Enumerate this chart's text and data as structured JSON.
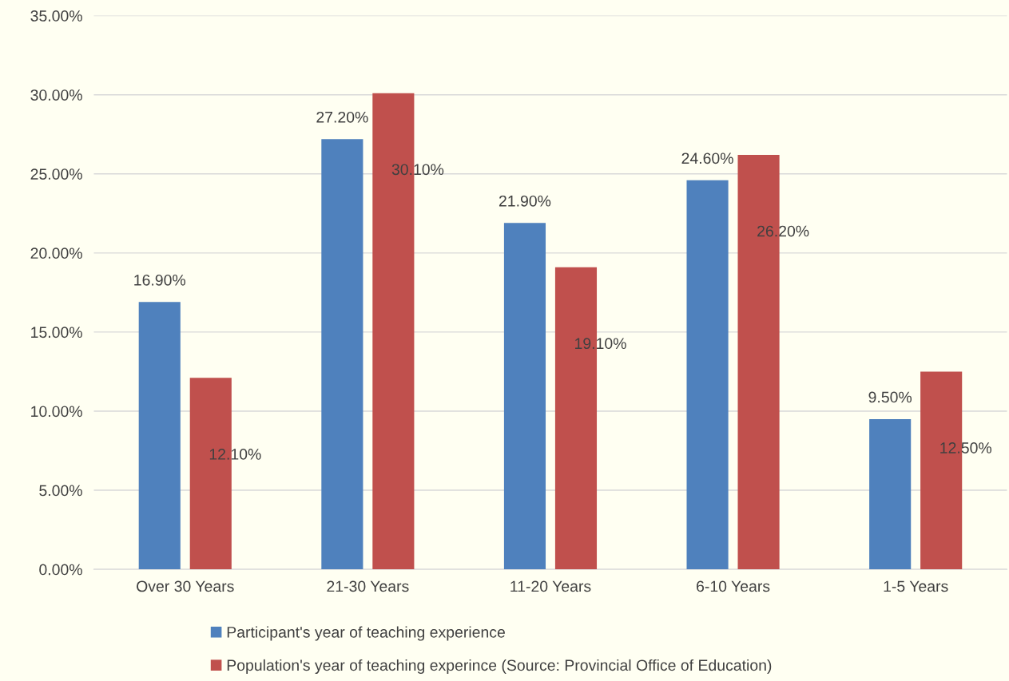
{
  "chart_data": {
    "type": "bar",
    "categories": [
      "Over 30 Years",
      "21-30 Years",
      "11-20 Years",
      "6-10 Years",
      "1-5 Years"
    ],
    "series": [
      {
        "name": "Participant's year of teaching experience",
        "color": "#4f81bd",
        "values": [
          16.9,
          27.2,
          21.9,
          24.6,
          9.5
        ],
        "value_labels": [
          "16.90%",
          "27.20%",
          "21.90%",
          "24.60%",
          "9.50%"
        ]
      },
      {
        "name": "Population's year of teaching experince (Source: Provincial Office of Education)",
        "color": "#c0504d",
        "values": [
          12.1,
          30.1,
          19.1,
          26.2,
          12.5
        ],
        "value_labels": [
          "12.10%",
          "30.10%",
          "19.10%",
          "26.20%",
          "12.50%"
        ]
      }
    ],
    "ylim": [
      0,
      35
    ],
    "yticks": [
      {
        "value": 0,
        "label": "0.00%"
      },
      {
        "value": 5,
        "label": "5.00%"
      },
      {
        "value": 10,
        "label": "10.00%"
      },
      {
        "value": 15,
        "label": "15.00%"
      },
      {
        "value": 20,
        "label": "20.00%"
      },
      {
        "value": 25,
        "label": "25.00%"
      },
      {
        "value": 30,
        "label": "30.00%"
      },
      {
        "value": 35,
        "label": "35.00%"
      }
    ],
    "grid": "y",
    "legend": "bottom"
  }
}
